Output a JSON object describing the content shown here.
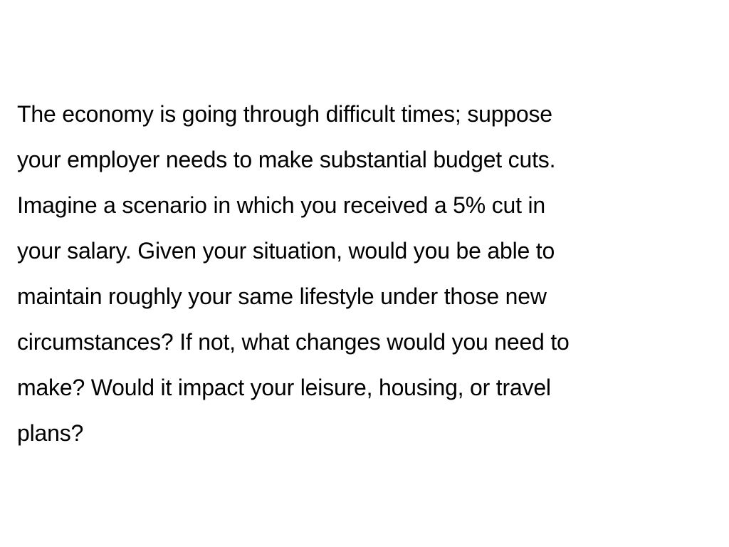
{
  "passage": {
    "lines": [
      "The economy is going through difficult times; suppose",
      "your employer needs to make substantial budget cuts.",
      "Imagine a scenario in which you received a 5% cut in",
      "your salary. Given your situation, would you be able to",
      "maintain roughly your same lifestyle under those new",
      "circumstances? If not, what changes would you need to",
      "make? Would it impact your leisure, housing, or travel",
      "plans?"
    ]
  },
  "colors": {
    "background": "#ffffff",
    "text": "#000000"
  }
}
